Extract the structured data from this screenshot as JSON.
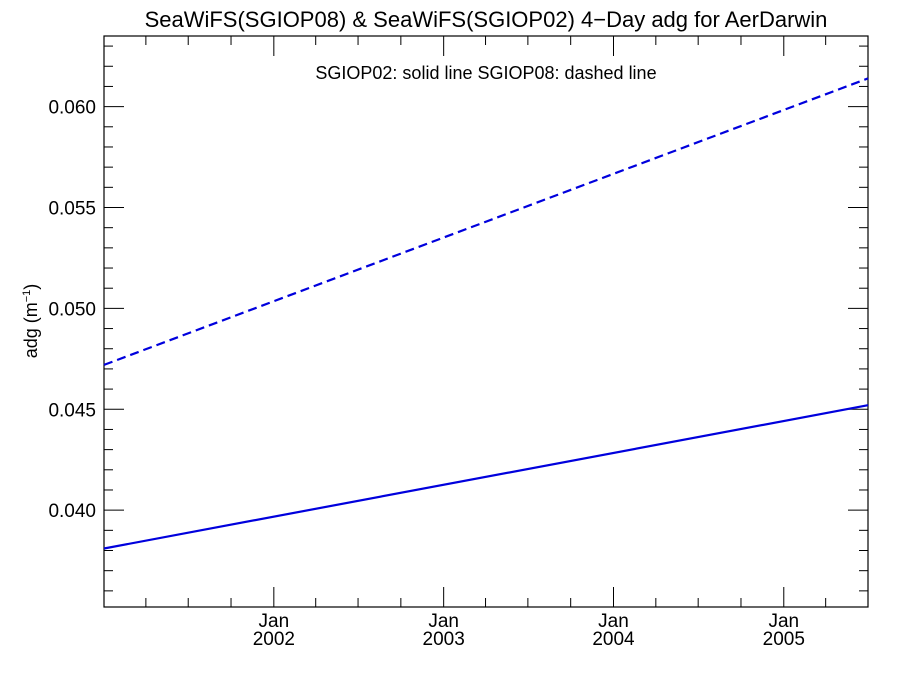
{
  "chart_data": {
    "type": "line",
    "title": "SeaWiFS(SGIOP08) & SeaWiFS(SGIOP02) 4−Day adg for AerDarwin",
    "ylabel": "adg (m",
    "ylabel_exp": "−1",
    "ylabel_close": ")",
    "annotation": "SGIOP02: solid line   SGIOP08: dashed line",
    "xlim": [
      "2001-01-01",
      "2005-07-01"
    ],
    "ylim": [
      0.0352,
      0.0635
    ],
    "x_ticks": [
      {
        "date": "2002-01-01",
        "month": "Jan",
        "year": "2002"
      },
      {
        "date": "2003-01-01",
        "month": "Jan",
        "year": "2003"
      },
      {
        "date": "2004-01-01",
        "month": "Jan",
        "year": "2004"
      },
      {
        "date": "2005-01-01",
        "month": "Jan",
        "year": "2005"
      }
    ],
    "y_ticks": [
      "0.040",
      "0.045",
      "0.050",
      "0.055",
      "0.060"
    ],
    "y_tick_values": [
      0.04,
      0.045,
      0.05,
      0.055,
      0.06
    ],
    "series": [
      {
        "style": "solid",
        "color": "#0000dd",
        "x": [
          "2001-01-01",
          "2005-07-01"
        ],
        "values": [
          0.0381,
          0.0452
        ]
      },
      {
        "style": "dashed",
        "color": "#0000dd",
        "x": [
          "2001-01-01",
          "2005-07-01"
        ],
        "values": [
          0.0472,
          0.0614
        ]
      }
    ],
    "grid": false
  }
}
